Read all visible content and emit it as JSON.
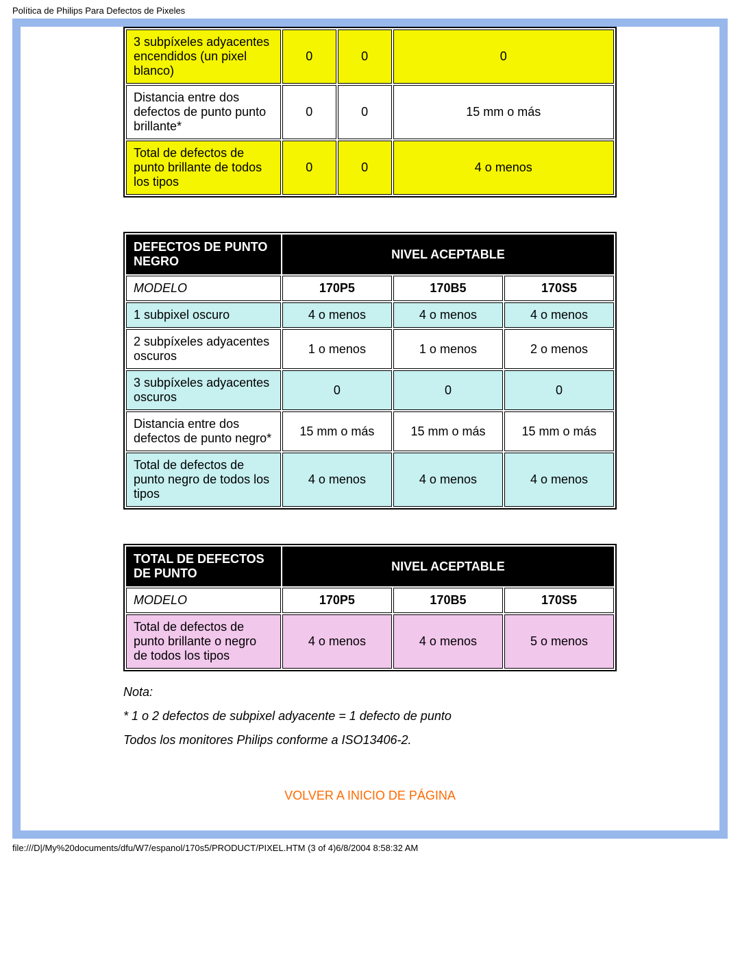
{
  "header_title": "Política de Philips Para Defectos de Pixeles",
  "colors": {
    "yellow": "#f5f500",
    "cyan": "#c7f0f0",
    "pink": "#f2c7ec",
    "frame": "#98b8ec",
    "link": "#ff6a00"
  },
  "table1": {
    "rows": [
      {
        "label": "3 subpíxeles adyacentes encendidos (un pixel blanco)",
        "c1": "0",
        "c2": "0",
        "c3": "0",
        "bg": "yellow"
      },
      {
        "label": "Distancia entre dos defectos de punto punto brillante*",
        "c1": "0",
        "c2": "0",
        "c3": "15 mm o más",
        "bg": "white"
      },
      {
        "label": "Total de defectos de punto brillante de todos los tipos",
        "c1": "0",
        "c2": "0",
        "c3": "4 o menos",
        "bg": "yellow"
      }
    ]
  },
  "table2": {
    "header_left": "DEFECTOS DE PUNTO NEGRO",
    "header_right": "NIVEL ACEPTABLE",
    "model_label": "MODELO",
    "models": [
      "170P5",
      "170B5",
      "170S5"
    ],
    "rows": [
      {
        "label": "1 subpixel oscuro",
        "c1": "4 o menos",
        "c2": "4 o menos",
        "c3": "4 o menos",
        "bg": "cyan"
      },
      {
        "label": "2 subpíxeles adyacentes oscuros",
        "c1": "1 o menos",
        "c2": "1 o menos",
        "c3": "2 o menos",
        "bg": "white"
      },
      {
        "label": "3 subpíxeles adyacentes oscuros",
        "c1": "0",
        "c2": "0",
        "c3": "0",
        "bg": "cyan"
      },
      {
        "label": "Distancia entre dos defectos de punto negro*",
        "c1": "15 mm o más",
        "c2": "15 mm o más",
        "c3": "15 mm o más",
        "bg": "white"
      },
      {
        "label": "Total de defectos de punto negro de todos los tipos",
        "c1": "4 o menos",
        "c2": "4 o menos",
        "c3": "4 o menos",
        "bg": "cyan"
      }
    ]
  },
  "table3": {
    "header_left": "TOTAL DE DEFECTOS DE PUNTO",
    "header_right": "NIVEL ACEPTABLE",
    "model_label": "MODELO",
    "models": [
      "170P5",
      "170B5",
      "170S5"
    ],
    "rows": [
      {
        "label": "Total de defectos de punto brillante o negro de todos los tipos",
        "c1": "4 o menos",
        "c2": "4 o menos",
        "c3": "5 o menos",
        "bg": "pink"
      }
    ]
  },
  "notes": {
    "n1": "Nota:",
    "n2": "* 1 o 2 defectos de subpixel adyacente = 1 defecto de punto",
    "n3": "Todos los monitores Philips conforme a ISO13406-2."
  },
  "back_link": "VOLVER A INICIO DE PÁGINA",
  "footer": "file:///D|/My%20documents/dfu/W7/espanol/170s5/PRODUCT/PIXEL.HTM (3 of 4)6/8/2004 8:58:32 AM"
}
